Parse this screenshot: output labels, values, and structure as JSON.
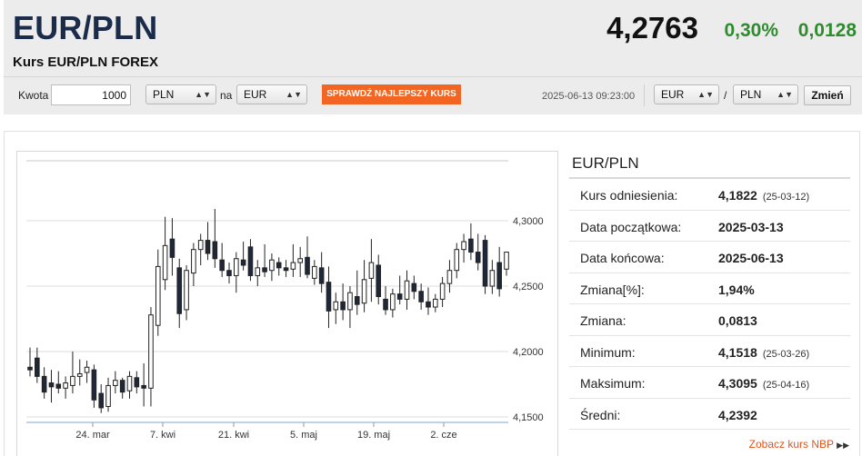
{
  "header": {
    "pair": "EUR/PLN",
    "subtitle": "Kurs EUR/PLN FOREX",
    "rate": "4,2763",
    "change_pct": "0,30%",
    "change_abs": "0,0128"
  },
  "converter": {
    "amount_label": "Kwota",
    "amount_value": "1000",
    "from_currency": "PLN",
    "to_label": "na",
    "to_currency": "EUR",
    "best_rate_button": "SPRAWDŹ NAJLEPSZY KURS",
    "timestamp": "2025-06-13 09:23:00",
    "pair_left": "EUR",
    "pair_sep": "/",
    "pair_right": "PLN",
    "change_button": "Zmień"
  },
  "info": {
    "title": "EUR/PLN",
    "rows": [
      {
        "label": "Kurs odniesienia:",
        "value": "4,1822",
        "date": "(25-03-12)"
      },
      {
        "label": "Data początkowa:",
        "value": "2025-03-13",
        "date": ""
      },
      {
        "label": "Data końcowa:",
        "value": "2025-06-13",
        "date": ""
      },
      {
        "label": "Zmiana[%]:",
        "value": "1,94%",
        "date": ""
      },
      {
        "label": "Zmiana:",
        "value": "0,0813",
        "date": ""
      },
      {
        "label": "Minimum:",
        "value": "4,1518",
        "date": "(25-03-26)"
      },
      {
        "label": "Maksimum:",
        "value": "4,3095",
        "date": "(25-04-16)"
      },
      {
        "label": "Średni:",
        "value": "4,2392",
        "date": ""
      }
    ]
  },
  "nbp_link": "Zobacz kurs NBP",
  "colors": {
    "up": "#2e8b2e",
    "accent": "#f26522",
    "title": "#1b2c4a"
  },
  "chart_data": {
    "type": "candlestick",
    "x_ticks": [
      "24. mar",
      "7. kwi",
      "21. kwi",
      "5. maj",
      "19. maj",
      "2. cze"
    ],
    "y_ticks": [
      "4,3000",
      "4,2500",
      "4,2000",
      "4,1500"
    ],
    "ylim": [
      4.15,
      4.315
    ],
    "grid": true,
    "candles": [
      {
        "o": 4.188,
        "h": 4.203,
        "l": 4.181,
        "c": 4.186
      },
      {
        "o": 4.195,
        "h": 4.203,
        "l": 4.176,
        "c": 4.181
      },
      {
        "o": 4.181,
        "h": 4.188,
        "l": 4.164,
        "c": 4.169
      },
      {
        "o": 4.176,
        "h": 4.186,
        "l": 4.161,
        "c": 4.173
      },
      {
        "o": 4.175,
        "h": 4.185,
        "l": 4.168,
        "c": 4.172
      },
      {
        "o": 4.172,
        "h": 4.181,
        "l": 4.164,
        "c": 4.176
      },
      {
        "o": 4.174,
        "h": 4.2,
        "l": 4.168,
        "c": 4.181
      },
      {
        "o": 4.181,
        "h": 4.194,
        "l": 4.174,
        "c": 4.183
      },
      {
        "o": 4.184,
        "h": 4.193,
        "l": 4.176,
        "c": 4.188
      },
      {
        "o": 4.186,
        "h": 4.19,
        "l": 4.157,
        "c": 4.163
      },
      {
        "o": 4.168,
        "h": 4.175,
        "l": 4.153,
        "c": 4.157
      },
      {
        "o": 4.158,
        "h": 4.18,
        "l": 4.154,
        "c": 4.174
      },
      {
        "o": 4.174,
        "h": 4.185,
        "l": 4.168,
        "c": 4.178
      },
      {
        "o": 4.178,
        "h": 4.18,
        "l": 4.164,
        "c": 4.169
      },
      {
        "o": 4.17,
        "h": 4.185,
        "l": 4.164,
        "c": 4.181
      },
      {
        "o": 4.18,
        "h": 4.185,
        "l": 4.168,
        "c": 4.173
      },
      {
        "o": 4.174,
        "h": 4.191,
        "l": 4.158,
        "c": 4.172
      },
      {
        "o": 4.172,
        "h": 4.234,
        "l": 4.158,
        "c": 4.228
      },
      {
        "o": 4.22,
        "h": 4.278,
        "l": 4.212,
        "c": 4.265
      },
      {
        "o": 4.255,
        "h": 4.303,
        "l": 4.247,
        "c": 4.281
      },
      {
        "o": 4.286,
        "h": 4.302,
        "l": 4.258,
        "c": 4.272
      },
      {
        "o": 4.264,
        "h": 4.271,
        "l": 4.218,
        "c": 4.229
      },
      {
        "o": 4.232,
        "h": 4.266,
        "l": 4.224,
        "c": 4.262
      },
      {
        "o": 4.26,
        "h": 4.283,
        "l": 4.25,
        "c": 4.278
      },
      {
        "o": 4.278,
        "h": 4.29,
        "l": 4.266,
        "c": 4.285
      },
      {
        "o": 4.285,
        "h": 4.299,
        "l": 4.27,
        "c": 4.275
      },
      {
        "o": 4.284,
        "h": 4.309,
        "l": 4.264,
        "c": 4.271
      },
      {
        "o": 4.27,
        "h": 4.283,
        "l": 4.257,
        "c": 4.262
      },
      {
        "o": 4.262,
        "h": 4.268,
        "l": 4.252,
        "c": 4.258
      },
      {
        "o": 4.258,
        "h": 4.276,
        "l": 4.245,
        "c": 4.271
      },
      {
        "o": 4.27,
        "h": 4.284,
        "l": 4.262,
        "c": 4.266
      },
      {
        "o": 4.28,
        "h": 4.286,
        "l": 4.254,
        "c": 4.258
      },
      {
        "o": 4.258,
        "h": 4.27,
        "l": 4.25,
        "c": 4.264
      },
      {
        "o": 4.264,
        "h": 4.282,
        "l": 4.257,
        "c": 4.261
      },
      {
        "o": 4.262,
        "h": 4.275,
        "l": 4.254,
        "c": 4.27
      },
      {
        "o": 4.268,
        "h": 4.272,
        "l": 4.258,
        "c": 4.264
      },
      {
        "o": 4.264,
        "h": 4.27,
        "l": 4.257,
        "c": 4.262
      },
      {
        "o": 4.263,
        "h": 4.282,
        "l": 4.257,
        "c": 4.268
      },
      {
        "o": 4.268,
        "h": 4.28,
        "l": 4.257,
        "c": 4.271
      },
      {
        "o": 4.272,
        "h": 4.288,
        "l": 4.256,
        "c": 4.259
      },
      {
        "o": 4.256,
        "h": 4.27,
        "l": 4.251,
        "c": 4.265
      },
      {
        "o": 4.264,
        "h": 4.276,
        "l": 4.245,
        "c": 4.252
      },
      {
        "o": 4.253,
        "h": 4.265,
        "l": 4.218,
        "c": 4.231
      },
      {
        "o": 4.232,
        "h": 4.245,
        "l": 4.221,
        "c": 4.238
      },
      {
        "o": 4.238,
        "h": 4.252,
        "l": 4.224,
        "c": 4.232
      },
      {
        "o": 4.232,
        "h": 4.25,
        "l": 4.218,
        "c": 4.245
      },
      {
        "o": 4.242,
        "h": 4.262,
        "l": 4.228,
        "c": 4.236
      },
      {
        "o": 4.237,
        "h": 4.27,
        "l": 4.23,
        "c": 4.255
      },
      {
        "o": 4.256,
        "h": 4.286,
        "l": 4.238,
        "c": 4.268
      },
      {
        "o": 4.266,
        "h": 4.274,
        "l": 4.236,
        "c": 4.242
      },
      {
        "o": 4.24,
        "h": 4.25,
        "l": 4.228,
        "c": 4.232
      },
      {
        "o": 4.232,
        "h": 4.248,
        "l": 4.226,
        "c": 4.244
      },
      {
        "o": 4.244,
        "h": 4.258,
        "l": 4.236,
        "c": 4.24
      },
      {
        "o": 4.24,
        "h": 4.262,
        "l": 4.232,
        "c": 4.254
      },
      {
        "o": 4.252,
        "h": 4.258,
        "l": 4.24,
        "c": 4.246
      },
      {
        "o": 4.246,
        "h": 4.252,
        "l": 4.232,
        "c": 4.238
      },
      {
        "o": 4.238,
        "h": 4.249,
        "l": 4.228,
        "c": 4.234
      },
      {
        "o": 4.234,
        "h": 4.244,
        "l": 4.23,
        "c": 4.24
      },
      {
        "o": 4.24,
        "h": 4.257,
        "l": 4.234,
        "c": 4.252
      },
      {
        "o": 4.252,
        "h": 4.27,
        "l": 4.245,
        "c": 4.262
      },
      {
        "o": 4.262,
        "h": 4.283,
        "l": 4.256,
        "c": 4.278
      },
      {
        "o": 4.278,
        "h": 4.29,
        "l": 4.268,
        "c": 4.284
      },
      {
        "o": 4.286,
        "h": 4.298,
        "l": 4.27,
        "c": 4.276
      },
      {
        "o": 4.276,
        "h": 4.29,
        "l": 4.262,
        "c": 4.268
      },
      {
        "o": 4.285,
        "h": 4.289,
        "l": 4.244,
        "c": 4.25
      },
      {
        "o": 4.25,
        "h": 4.27,
        "l": 4.244,
        "c": 4.262
      },
      {
        "o": 4.268,
        "h": 4.28,
        "l": 4.242,
        "c": 4.248
      },
      {
        "o": 4.263,
        "h": 4.275,
        "l": 4.258,
        "c": 4.276
      }
    ]
  }
}
